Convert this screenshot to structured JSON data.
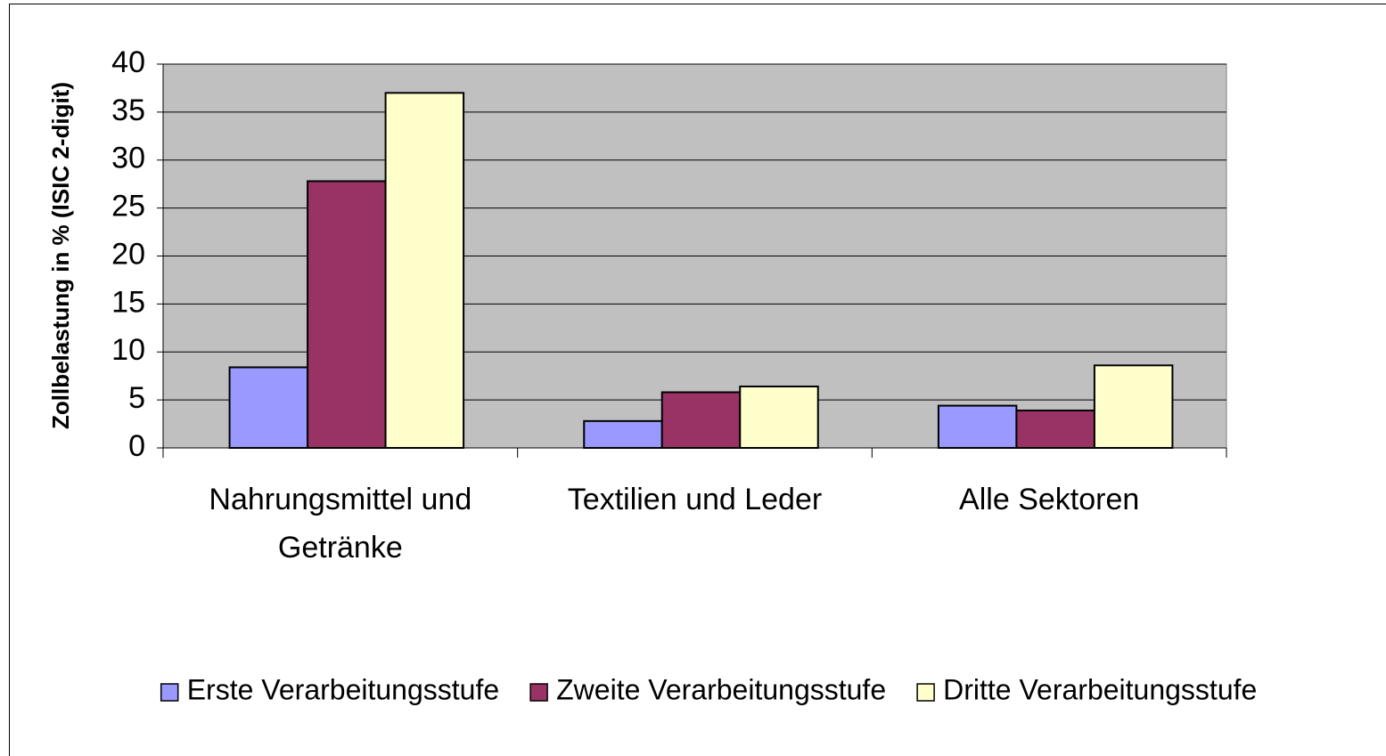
{
  "chart_data": {
    "type": "bar",
    "ylabel": "Zollbelastung in % (ISIC 2-digit)",
    "categories": [
      "Nahrungsmittel und Getränke",
      "Textilien und Leder",
      "Alle Sektoren"
    ],
    "series": [
      {
        "name": "Erste Verarbeitungsstufe",
        "color": "#9999ff",
        "values": [
          8.4,
          2.8,
          4.4
        ]
      },
      {
        "name": "Zweite Verarbeitungsstufe",
        "color": "#993366",
        "values": [
          27.8,
          5.8,
          3.9
        ]
      },
      {
        "name": "Dritte Verarbeitungsstufe",
        "color": "#ffffcc",
        "values": [
          37.0,
          6.4,
          8.6
        ]
      }
    ],
    "ylim": [
      0,
      40
    ],
    "yticks": [
      0,
      5,
      10,
      15,
      20,
      25,
      30,
      35,
      40
    ],
    "grid": true,
    "plot_background": "#c0c0c0",
    "legend": "bottom"
  }
}
